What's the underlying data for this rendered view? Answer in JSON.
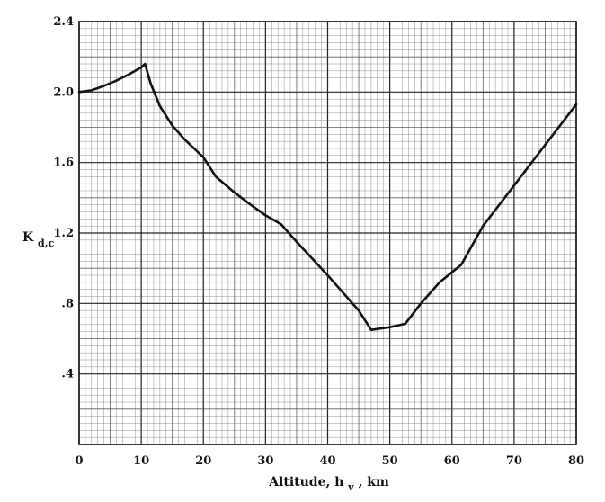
{
  "chart_data": {
    "type": "line",
    "title": "",
    "xlabel": "Altitude, h_v, km",
    "xlabel_parts": {
      "main": "Altitude, h",
      "sub": "v",
      "tail": ", km"
    },
    "ylabel": "K_d,c",
    "ylabel_parts": {
      "main": "K",
      "sub": "d,c"
    },
    "xlim": [
      0,
      80
    ],
    "ylim": [
      0,
      2.4
    ],
    "x_ticks": [
      0,
      10,
      20,
      30,
      40,
      50,
      60,
      70,
      80
    ],
    "x_tick_labels": [
      "0",
      "10",
      "20",
      "30",
      "40",
      "50",
      "60",
      "70",
      "80"
    ],
    "y_ticks": [
      0.4,
      0.8,
      1.2,
      1.6,
      2.0,
      2.4
    ],
    "y_tick_labels": [
      ".4",
      ".8",
      "1.2",
      "1.6",
      "2.0",
      "2.4"
    ],
    "grid": true,
    "legend": "none",
    "line_color": "#111111",
    "grid_color": "#444444",
    "series": [
      {
        "x": [
          0,
          2,
          4,
          6,
          8,
          10,
          10.6,
          11.5,
          13,
          15,
          17,
          20,
          22,
          25,
          28,
          30,
          32.5,
          35,
          40,
          45,
          47,
          50,
          52.5,
          55,
          58,
          61.5,
          65,
          70,
          75,
          80
        ],
        "values": [
          2.0,
          2.01,
          2.035,
          2.065,
          2.1,
          2.14,
          2.16,
          2.05,
          1.92,
          1.81,
          1.73,
          1.63,
          1.52,
          1.43,
          1.35,
          1.3,
          1.25,
          1.15,
          0.96,
          0.76,
          0.65,
          0.665,
          0.685,
          0.8,
          0.92,
          1.02,
          1.24,
          1.47,
          1.7,
          1.93
        ]
      }
    ]
  }
}
